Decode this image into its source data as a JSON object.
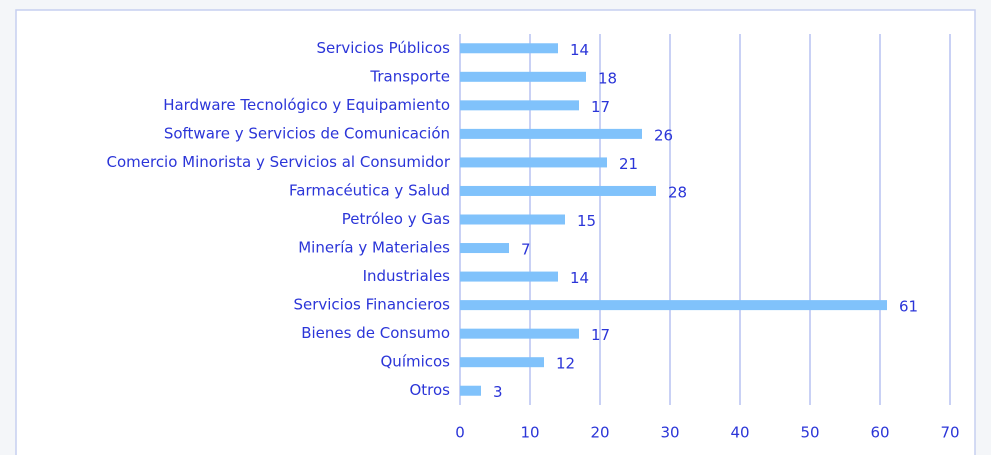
{
  "chart_data": {
    "type": "bar",
    "orientation": "horizontal",
    "categories": [
      "Servicios Públicos",
      "Transporte",
      "Hardware Tecnológico y Equipamiento",
      "Software y Servicios de Comunicación",
      "Comercio Minorista y Servicios al Consumidor",
      "Farmacéutica y Salud",
      "Petróleo y Gas",
      "Minería y Materiales",
      "Industriales",
      "Servicios Financieros",
      "Bienes de Consumo",
      "Químicos",
      "Otros"
    ],
    "values": [
      14,
      18,
      17,
      26,
      21,
      28,
      15,
      7,
      14,
      61,
      17,
      12,
      3
    ],
    "color": "#80c2fb",
    "xlim": [
      0,
      70
    ],
    "xticks": [
      0,
      10,
      20,
      30,
      40,
      50,
      60,
      70
    ],
    "grid": true
  }
}
